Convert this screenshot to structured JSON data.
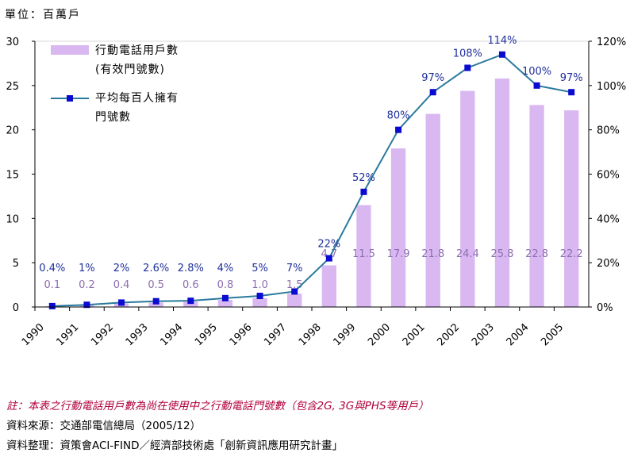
{
  "unit_label": "單位：百萬戶",
  "legend": {
    "bar_line1": "行動電話用戶數",
    "bar_line2": "(有效門號數)",
    "line_line1": "平均每百人擁有",
    "line_line2": "門號數"
  },
  "notes": {
    "note": "註：本表之行動電話用戶數為尚在使用中之行動電話門號數（包含2G, 3G與PHS等用戶）",
    "source": "資料來源：交通部電信總局（2005/12）",
    "compiled": "資料整理：資策會ACI-FIND／經濟部技術處「創新資訊應用研究計畫」"
  },
  "colors": {
    "bar": "#d9b8f2",
    "bar_label": "#8c6db0",
    "line": "#2a7a9c",
    "marker": "#0a0ad0",
    "pct_label": "#1f2f9c"
  },
  "chart_data": {
    "type": "bar",
    "categories": [
      "1990",
      "1991",
      "1992",
      "1993",
      "1994",
      "1995",
      "1996",
      "1997",
      "1998",
      "1999",
      "2000",
      "2001",
      "2002",
      "2003",
      "2004",
      "2005"
    ],
    "y_left": {
      "min": 0,
      "max": 30,
      "ticks": [
        0,
        5,
        10,
        15,
        20,
        25,
        30
      ]
    },
    "y_right": {
      "min": 0,
      "max": 120,
      "ticks": [
        "0%",
        "20%",
        "40%",
        "60%",
        "80%",
        "100%",
        "120%"
      ]
    },
    "series": [
      {
        "name": "行動電話用戶數(有效門號數)",
        "type": "bar",
        "axis": "left",
        "values": [
          0.1,
          0.2,
          0.4,
          0.5,
          0.6,
          0.8,
          1.0,
          1.5,
          4.7,
          11.5,
          17.9,
          21.8,
          24.4,
          25.8,
          22.8,
          22.2
        ],
        "labels": [
          "0.1",
          "0.2",
          "0.4",
          "0.5",
          "0.6",
          "0.8",
          "1.0",
          "1.5",
          "4.7",
          "11.5",
          "17.9",
          "21.8",
          "24.4",
          "25.8",
          "22.8",
          "22.2"
        ]
      },
      {
        "name": "平均每百人擁有門號數",
        "type": "line",
        "axis": "right",
        "values": [
          0.4,
          1,
          2,
          2.6,
          2.8,
          4,
          5,
          7,
          22,
          52,
          80,
          97,
          108,
          114,
          100,
          97
        ],
        "labels": [
          "0.4%",
          "1%",
          "2%",
          "2.6%",
          "2.8%",
          "4%",
          "5%",
          "7%",
          "22%",
          "52%",
          "80%",
          "97%",
          "108%",
          "114%",
          "100%",
          "97%"
        ]
      }
    ]
  }
}
